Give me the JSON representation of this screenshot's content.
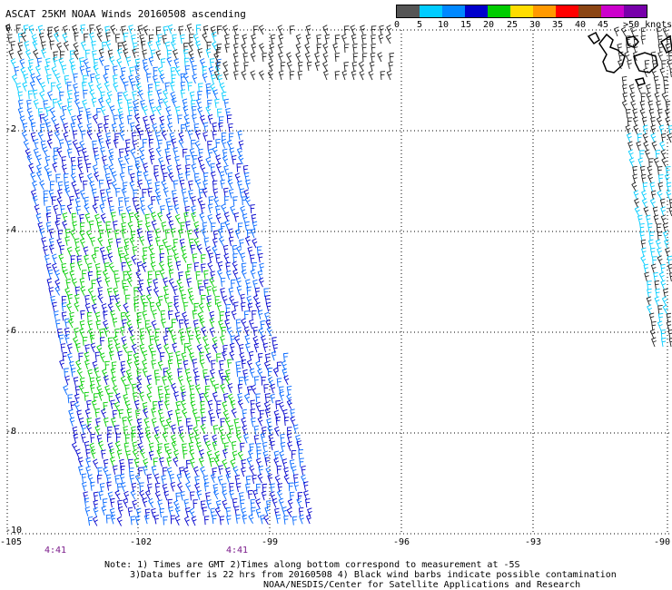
{
  "title": "ASCAT 25KM NOAA Winds 20160508 ascending",
  "legend": {
    "labels": [
      "0",
      "5",
      "10",
      "15",
      "20",
      "25",
      "30",
      "35",
      "40",
      "45",
      ">50 knots"
    ],
    "colors": [
      "#555555",
      "#00ccff",
      "#0088ff",
      "#0000cc",
      "#00cc00",
      "#ffdd00",
      "#ff9900",
      "#ff0000",
      "#8b4513",
      "#cc00cc",
      "#7700aa"
    ]
  },
  "axes": {
    "y_ticks": [
      "0",
      "-2",
      "-4",
      "-6",
      "-8",
      "-10"
    ],
    "x_ticks": [
      "-105",
      "-102",
      "-99",
      "-96",
      "-93",
      "-90"
    ]
  },
  "time_labels": [
    "4:41",
    "4:41"
  ],
  "notes": {
    "line1": "Note: 1) Times are GMT 2)Times along bottom correspond to measurement at -5S",
    "line2": "3)Data buffer is 22 hrs from 20160508 4) Black wind barbs indicate possible contamination",
    "line3": "NOAA/NESDIS/Center for Satellite Applications and Research"
  },
  "colors": {
    "gridline": "#000000",
    "time_label": "#7a1a8a",
    "barb_black": "#222222",
    "barb_cyan": "#00ccff",
    "barb_blue": "#0066ff",
    "barb_darkblue": "#0000cc",
    "barb_green": "#00cc00"
  }
}
